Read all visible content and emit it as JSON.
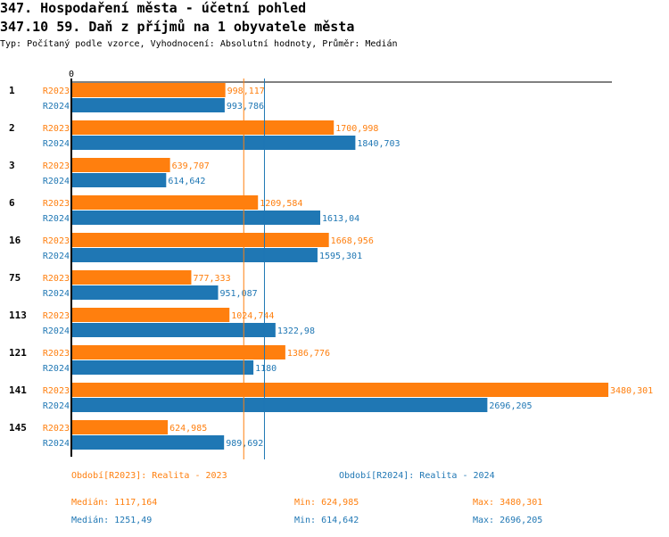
{
  "header": {
    "title": "347. Hospodaření města - účetní pohled",
    "subtitle": "347.10 59. Daň z příjmů na 1 obyvatele města",
    "info": "Typ: Počítaný podle vzorce, Vyhodnocení: Absolutní hodnoty, Průměr: Medián"
  },
  "colors": {
    "R2023": "#ff7f0e",
    "R2024": "#1f77b4"
  },
  "chart_data": {
    "type": "bar",
    "orientation": "horizontal",
    "zero_label": "0",
    "xlim": [
      0,
      3480.301
    ],
    "categories": [
      "1",
      "2",
      "3",
      "6",
      "16",
      "75",
      "113",
      "121",
      "141",
      "145"
    ],
    "series": [
      {
        "name": "R2023",
        "labels": [
          "998,117",
          "1700,998",
          "639,707",
          "1209,584",
          "1668,956",
          "777,333",
          "1024,744",
          "1386,776",
          "3480,301",
          "624,985"
        ],
        "values": [
          998.117,
          1700.998,
          639.707,
          1209.584,
          1668.956,
          777.333,
          1024.744,
          1386.776,
          3480.301,
          624.985
        ],
        "median": 1117.164
      },
      {
        "name": "R2024",
        "labels": [
          "993,786",
          "1840,703",
          "614,642",
          "1613,04",
          "1595,301",
          "951,087",
          "1322,98",
          "1180",
          "2696,205",
          "989,692"
        ],
        "values": [
          993.786,
          1840.703,
          614.642,
          1613.04,
          1595.301,
          951.087,
          1322.98,
          1180,
          2696.205,
          989.692
        ],
        "median": 1251.49
      }
    ]
  },
  "legend": {
    "r2023": {
      "label": "Období[R2023]: Realita - 2023",
      "median": "Medián: 1117,164",
      "min": "Min: 624,985",
      "max": "Max: 3480,301"
    },
    "r2024": {
      "label": "Období[R2024]: Realita - 2024",
      "median": "Medián: 1251,49",
      "min": "Min: 614,642",
      "max": "Max: 2696,205"
    }
  }
}
